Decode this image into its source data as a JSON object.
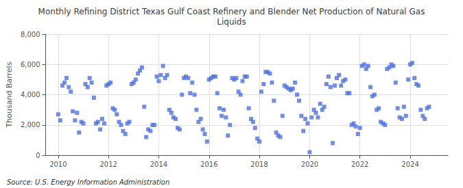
{
  "chart_data": {
    "type": "scatter",
    "title": "Monthly Refining District Texas Gulf Coast Refinery and Blender Net Production of Natural Gas\nLiquids",
    "ylabel": "Thousand Barrels",
    "annotations": [
      "Source: U.S. Energy Information Administration"
    ],
    "marker": "square",
    "grid": true,
    "xlim": [
      2009.5,
      2025.5
    ],
    "xticks": [
      2010,
      2012,
      2014,
      2016,
      2018,
      2020,
      2022,
      2024
    ],
    "ylim": [
      0,
      8000
    ],
    "yticks": [
      0,
      {
        "value": 2000,
        "label": "2,000"
      },
      {
        "value": 4000,
        "label": "4,000"
      },
      {
        "value": 6000,
        "label": "6,000"
      },
      {
        "value": 8000,
        "label": "8,000"
      }
    ],
    "x": [
      2010.0,
      2010.08,
      2010.17,
      2010.25,
      2010.33,
      2010.42,
      2010.5,
      2010.58,
      2010.67,
      2010.75,
      2010.83,
      2010.92,
      2011.0,
      2011.08,
      2011.17,
      2011.25,
      2011.33,
      2011.42,
      2011.5,
      2011.58,
      2011.67,
      2011.75,
      2011.83,
      2011.92,
      2012.0,
      2012.08,
      2012.17,
      2012.25,
      2012.33,
      2012.42,
      2012.5,
      2012.58,
      2012.67,
      2012.75,
      2012.83,
      2012.92,
      2013.0,
      2013.08,
      2013.17,
      2013.25,
      2013.33,
      2013.42,
      2013.5,
      2013.58,
      2013.67,
      2013.75,
      2013.83,
      2013.92,
      2014.0,
      2014.08,
      2014.17,
      2014.25,
      2014.33,
      2014.42,
      2014.5,
      2014.58,
      2014.67,
      2014.75,
      2014.83,
      2014.92,
      2015.0,
      2015.08,
      2015.17,
      2015.25,
      2015.33,
      2015.42,
      2015.5,
      2015.58,
      2015.67,
      2015.75,
      2015.83,
      2015.92,
      2016.0,
      2016.08,
      2016.17,
      2016.25,
      2016.33,
      2016.42,
      2016.5,
      2016.58,
      2016.67,
      2016.75,
      2016.83,
      2016.92,
      2017.0,
      2017.08,
      2017.17,
      2017.25,
      2017.33,
      2017.42,
      2017.5,
      2017.58,
      2017.67,
      2017.75,
      2017.83,
      2017.92,
      2018.0,
      2018.08,
      2018.17,
      2018.25,
      2018.33,
      2018.42,
      2018.5,
      2018.58,
      2018.67,
      2018.75,
      2018.83,
      2018.92,
      2019.0,
      2019.08,
      2019.17,
      2019.25,
      2019.33,
      2019.42,
      2019.5,
      2019.58,
      2019.67,
      2019.75,
      2019.83,
      2019.92,
      2020.0,
      2020.08,
      2020.17,
      2020.25,
      2020.33,
      2020.42,
      2020.5,
      2020.58,
      2020.67,
      2020.75,
      2020.83,
      2020.92,
      2021.0,
      2021.08,
      2021.17,
      2021.25,
      2021.33,
      2021.42,
      2021.5,
      2021.58,
      2021.67,
      2021.75,
      2021.83,
      2021.92,
      2022.0,
      2022.08,
      2022.17,
      2022.25,
      2022.33,
      2022.42,
      2022.5,
      2022.58,
      2022.67,
      2022.75,
      2022.83,
      2022.92,
      2023.0,
      2023.08,
      2023.17,
      2023.25,
      2023.33,
      2023.42,
      2023.5,
      2023.58,
      2023.67,
      2023.75,
      2023.83,
      2023.92,
      2024.0,
      2024.08,
      2024.17,
      2024.25,
      2024.33,
      2024.42,
      2024.5,
      2024.58,
      2024.67,
      2024.75
    ],
    "values": [
      2700,
      2300,
      4600,
      4800,
      5100,
      4500,
      4200,
      2900,
      2300,
      2800,
      1500,
      2200,
      2100,
      4700,
      4500,
      5100,
      4800,
      3800,
      2100,
      2200,
      1700,
      2400,
      2100,
      4600,
      4700,
      4800,
      3100,
      3000,
      2700,
      2200,
      2000,
      1600,
      1400,
      2100,
      2200,
      4700,
      4800,
      5000,
      5400,
      5600,
      5800,
      3200,
      1200,
      1700,
      1600,
      2000,
      2000,
      5200,
      4900,
      5300,
      5900,
      5100,
      5300,
      3000,
      2800,
      2500,
      2400,
      1800,
      1700,
      4000,
      5100,
      5200,
      5100,
      4100,
      4800,
      4000,
      3000,
      2200,
      2400,
      1700,
      1400,
      900,
      5000,
      5100,
      5200,
      5200,
      4100,
      3100,
      2600,
      3000,
      2500,
      1300,
      2000,
      5100,
      5000,
      5100,
      4200,
      4000,
      4900,
      5200,
      5200,
      3100,
      2400,
      2200,
      1800,
      1100,
      900,
      4200,
      4700,
      5500,
      5500,
      5400,
      4800,
      3600,
      1500,
      1300,
      1200,
      2600,
      4600,
      4500,
      4400,
      4300,
      4400,
      4800,
      4000,
      3600,
      2600,
      1600,
      2400,
      2100,
      200,
      2500,
      3000,
      2800,
      2500,
      3400,
      3000,
      3200,
      4700,
      5200,
      4500,
      800,
      4600,
      5100,
      5300,
      4600,
      4900,
      5000,
      4100,
      4100,
      2000,
      2100,
      1900,
      1400,
      1800,
      5900,
      6000,
      5700,
      5900,
      4500,
      3900,
      4000,
      3000,
      3100,
      2200,
      2100,
      2000,
      5700,
      5800,
      6000,
      5900,
      4800,
      3100,
      2500,
      2400,
      3200,
      2600,
      5000,
      6000,
      6100,
      5100,
      4700,
      4600,
      3000,
      2600,
      2400,
      3100,
      3200
    ]
  }
}
